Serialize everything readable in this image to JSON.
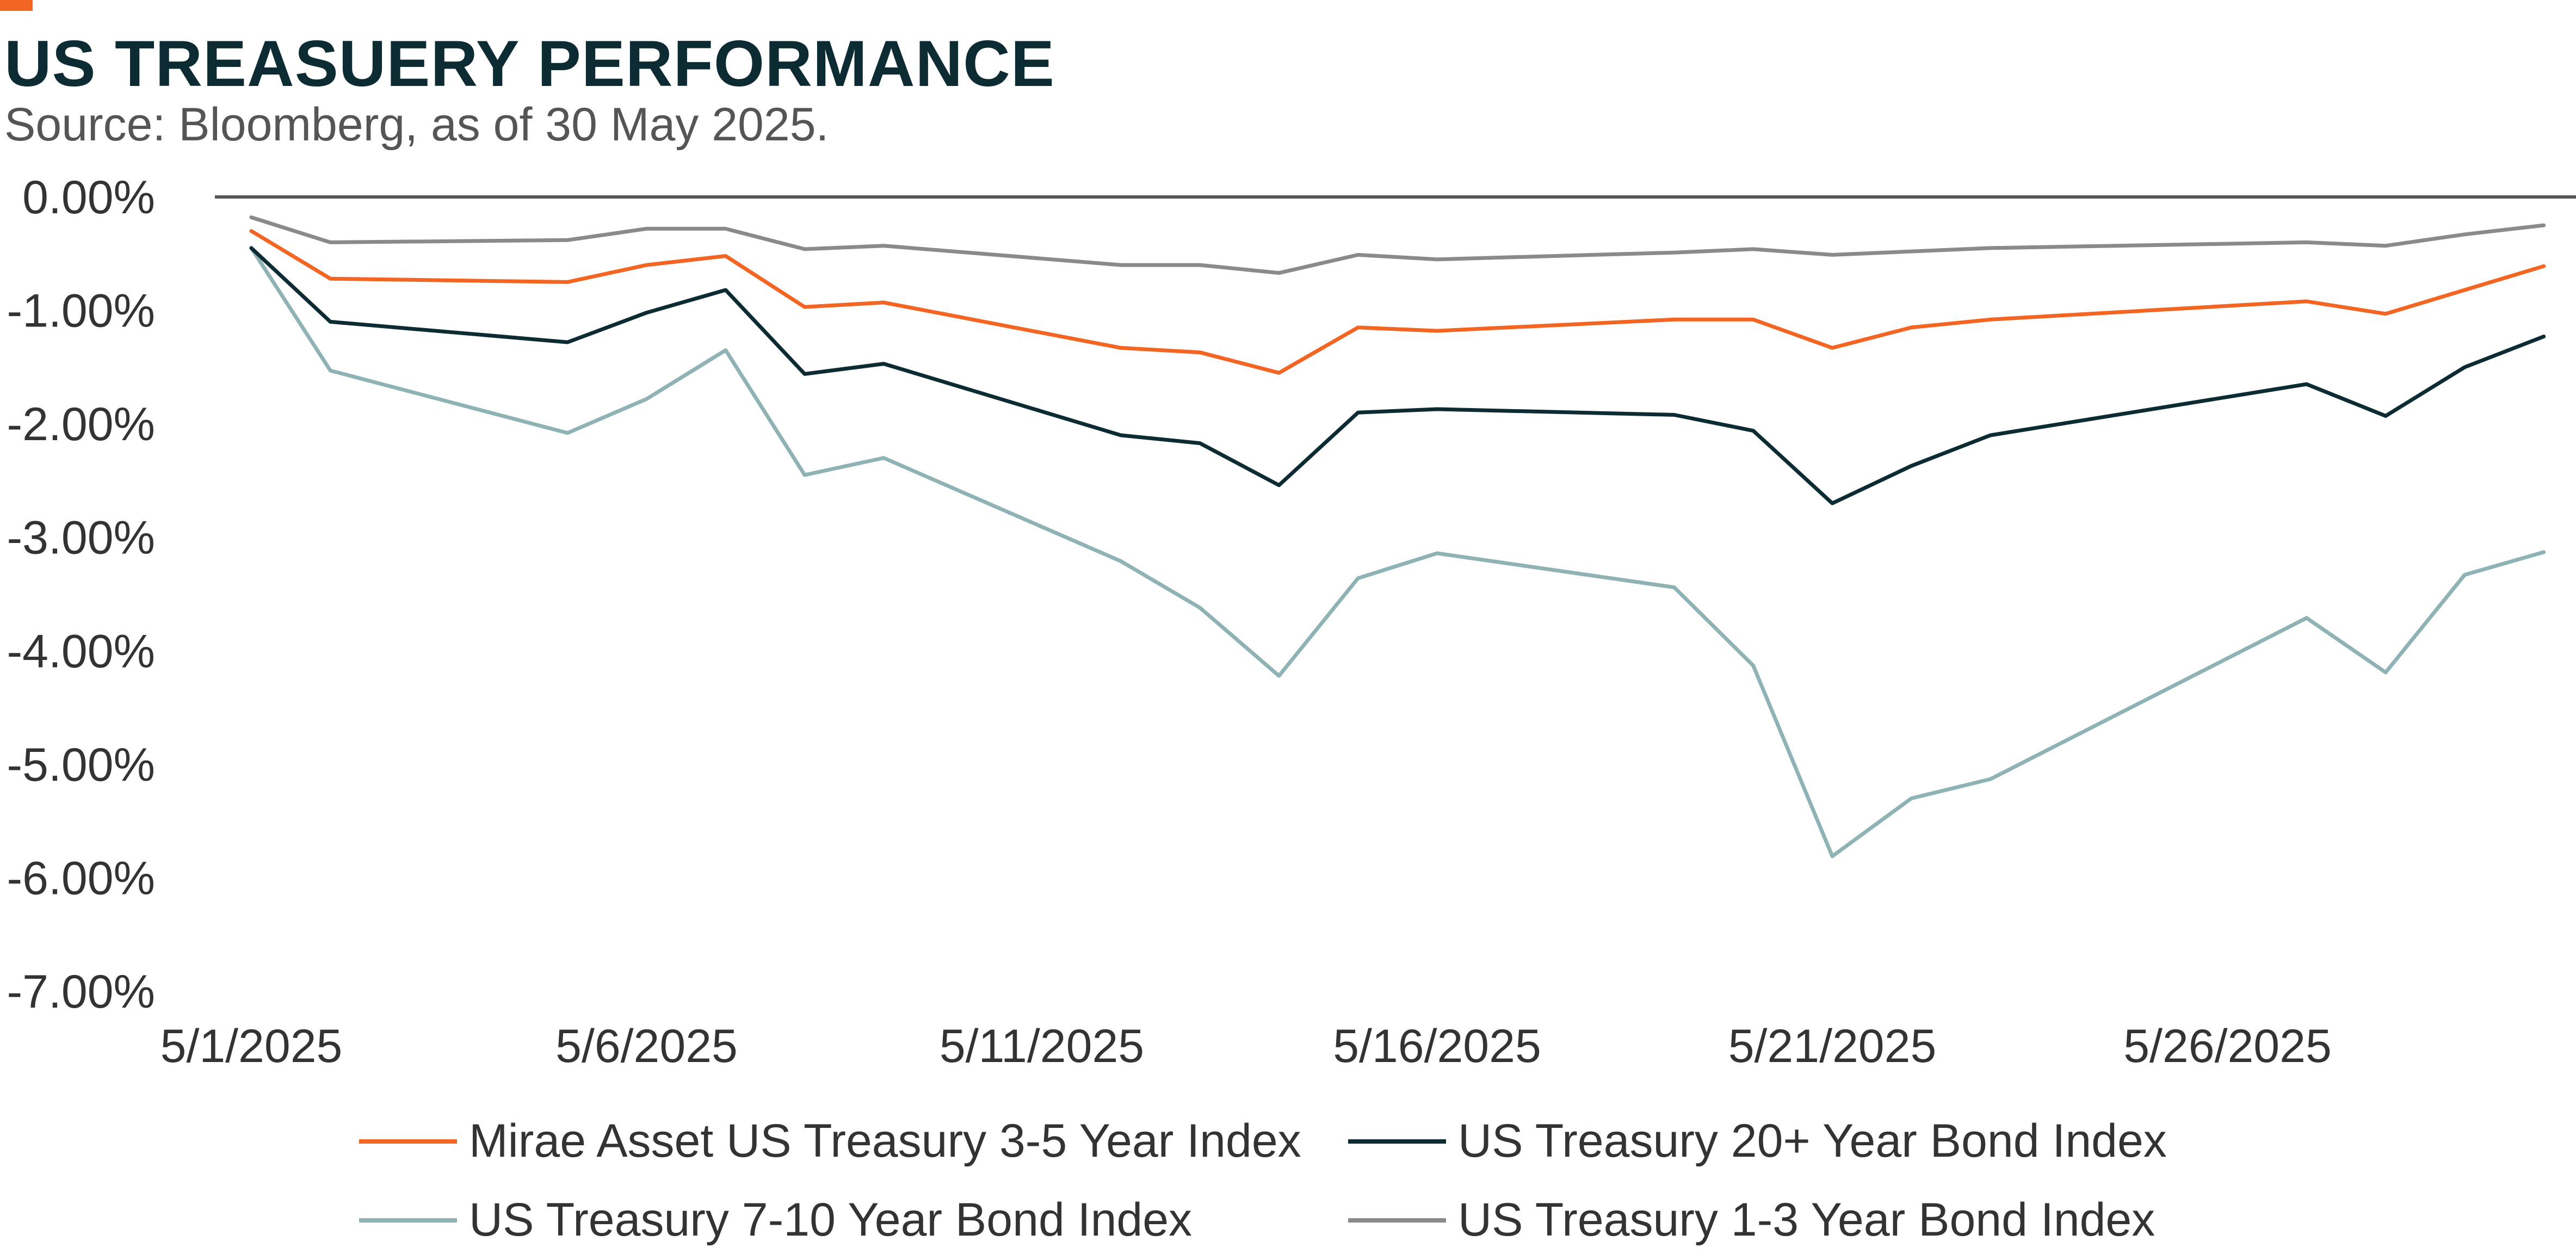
{
  "header": {
    "title": "US TREASUERY PERFORMANCE",
    "subtitle": "Source: Bloomberg, as of 30 May 2025."
  },
  "colors": {
    "accent": "#f26522",
    "title": "#0d2b33"
  },
  "chart_data": {
    "type": "line",
    "title": "US TREASUERY PERFORMANCE",
    "subtitle": "Source: Bloomberg, as of 30 May 2025.",
    "xlabel": "",
    "ylabel": "",
    "x": [
      "5/1/2025",
      "5/2/2025",
      "5/5/2025",
      "5/6/2025",
      "5/7/2025",
      "5/8/2025",
      "5/9/2025",
      "5/12/2025",
      "5/13/2025",
      "5/14/2025",
      "5/15/2025",
      "5/16/2025",
      "5/19/2025",
      "5/20/2025",
      "5/21/2025",
      "5/22/2025",
      "5/23/2025",
      "5/27/2025",
      "5/28/2025",
      "5/29/2025",
      "5/30/2025"
    ],
    "x_tick_labels": [
      "5/1/2025",
      "5/6/2025",
      "5/11/2025",
      "5/16/2025",
      "5/21/2025",
      "5/26/2025"
    ],
    "y_tick_labels": [
      "0.00%",
      "-1.00%",
      "-2.00%",
      "-3.00%",
      "-4.00%",
      "-5.00%",
      "-6.00%",
      "-7.00%"
    ],
    "ylim": [
      -7,
      0
    ],
    "grid": false,
    "legend_position": "bottom",
    "series": [
      {
        "name": "Mirae Asset US Treasury 3-5 Year Index",
        "color": "#f26522",
        "values": [
          -0.3,
          -0.72,
          -0.75,
          -0.6,
          -0.52,
          -0.97,
          -0.93,
          -1.33,
          -1.37,
          -1.55,
          -1.15,
          -1.18,
          -1.08,
          -1.08,
          -1.33,
          -1.15,
          -1.08,
          -0.92,
          -1.03,
          -0.82,
          -0.61
        ]
      },
      {
        "name": "US Treasury 20+ Year Bond Index",
        "color": "#0d2b33",
        "values": [
          -0.45,
          -1.1,
          -1.28,
          -1.02,
          -0.82,
          -1.56,
          -1.47,
          -2.1,
          -2.17,
          -2.54,
          -1.9,
          -1.87,
          -1.92,
          -2.06,
          -2.7,
          -2.37,
          -2.1,
          -1.65,
          -1.93,
          -1.5,
          -1.23
        ]
      },
      {
        "name": "US Treasury 7-10 Year Bond Index",
        "color": "#8fb3b5",
        "values": [
          -0.45,
          -1.53,
          -2.08,
          -1.78,
          -1.35,
          -2.45,
          -2.3,
          -3.21,
          -3.62,
          -4.22,
          -3.36,
          -3.14,
          -3.44,
          -4.13,
          -5.81,
          -5.3,
          -5.13,
          -3.71,
          -4.19,
          -3.33,
          -3.13
        ]
      },
      {
        "name": "US Treasury 1-3 Year Bond Index",
        "color": "#8a8a8a",
        "values": [
          -0.18,
          -0.4,
          -0.38,
          -0.28,
          -0.28,
          -0.46,
          -0.43,
          -0.6,
          -0.6,
          -0.67,
          -0.51,
          -0.55,
          -0.49,
          -0.46,
          -0.51,
          -0.48,
          -0.45,
          -0.4,
          -0.43,
          -0.33,
          -0.25
        ]
      }
    ]
  }
}
